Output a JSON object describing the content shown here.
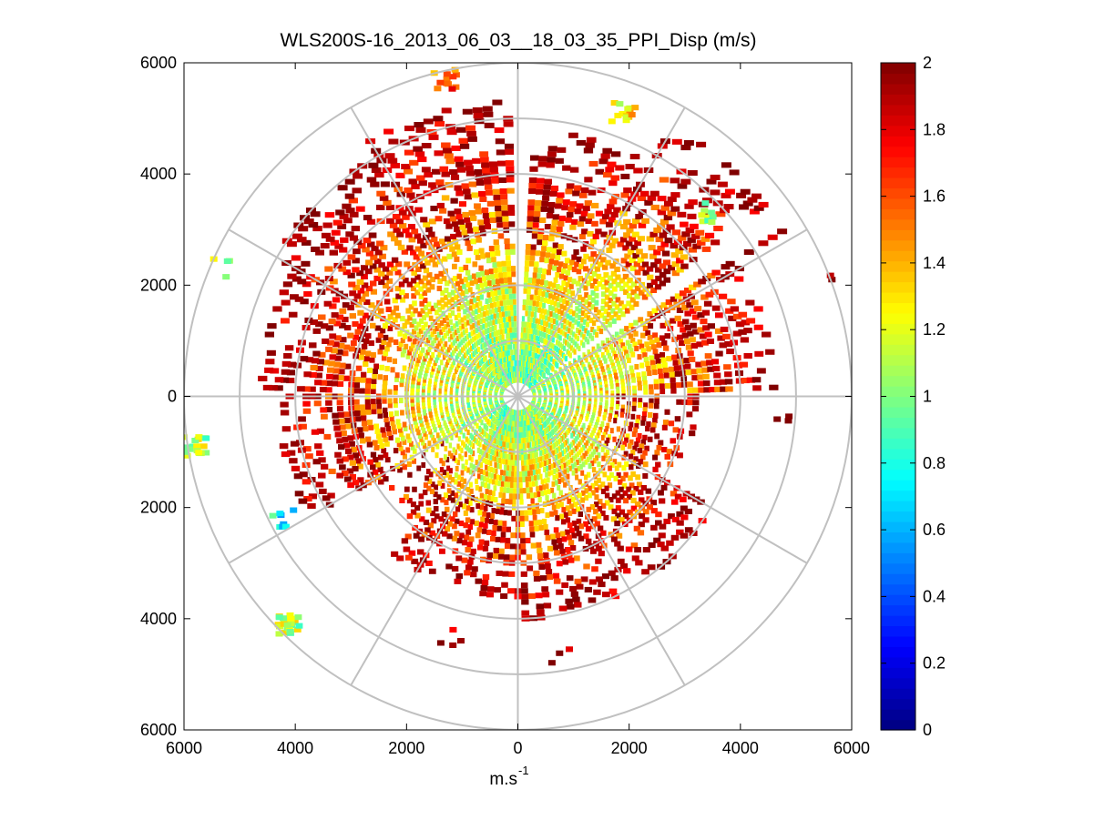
{
  "chart_data": {
    "type": "heatmap",
    "subtype": "polar-ppi",
    "title": "WLS200S-16_2013_06_03__18_03_35_PPI_Disp (m/s)",
    "xlabel": "m.s",
    "xlabel_superscript": "-1",
    "ylabel": "",
    "xlim": [
      -6000,
      6000
    ],
    "ylim": [
      -6000,
      6000
    ],
    "x_ticks": [
      {
        "value": -6000,
        "label": "6000"
      },
      {
        "value": -4000,
        "label": "4000"
      },
      {
        "value": -2000,
        "label": "2000"
      },
      {
        "value": 0,
        "label": "0"
      },
      {
        "value": 2000,
        "label": "2000"
      },
      {
        "value": 4000,
        "label": "4000"
      },
      {
        "value": 6000,
        "label": "6000"
      }
    ],
    "y_ticks": [
      {
        "value": 6000,
        "label": "6000"
      },
      {
        "value": 4000,
        "label": "4000"
      },
      {
        "value": 2000,
        "label": "2000"
      },
      {
        "value": 0,
        "label": "0"
      },
      {
        "value": -2000,
        "label": "2000"
      },
      {
        "value": -4000,
        "label": "4000"
      },
      {
        "value": -6000,
        "label": "6000"
      }
    ],
    "polar_rings": [
      1000,
      2000,
      3000,
      4000,
      5000,
      6000
    ],
    "polar_spokes_deg": [
      0,
      30,
      60,
      90,
      120,
      150,
      180,
      210,
      240,
      270,
      300,
      330
    ],
    "range_gate_m": 100,
    "azimuth_step_deg": 2,
    "max_range_m": 6000,
    "colorbar": {
      "colormap": "jet",
      "min": 0,
      "max": 2,
      "ticks": [
        {
          "value": 0,
          "label": "0"
        },
        {
          "value": 0.2,
          "label": "0.2"
        },
        {
          "value": 0.4,
          "label": "0.4"
        },
        {
          "value": 0.6,
          "label": "0.6"
        },
        {
          "value": 0.8,
          "label": "0.8"
        },
        {
          "value": 1,
          "label": "1"
        },
        {
          "value": 1.2,
          "label": "1.2"
        },
        {
          "value": 1.4,
          "label": "1.4"
        },
        {
          "value": 1.6,
          "label": "1.6"
        },
        {
          "value": 1.8,
          "label": "1.8"
        },
        {
          "value": 2,
          "label": "2"
        }
      ]
    },
    "sector_coverage": [
      {
        "az_from": 0,
        "az_to": 30,
        "max_range_m": 4800,
        "inner_value": 0.95,
        "outer_value": 1.95
      },
      {
        "az_from": 30,
        "az_to": 60,
        "max_range_m": 5600,
        "inner_value": 0.95,
        "outer_value": 1.95
      },
      {
        "az_from": 60,
        "az_to": 90,
        "max_range_m": 4600,
        "inner_value": 1.0,
        "outer_value": 1.9
      },
      {
        "az_from": 90,
        "az_to": 120,
        "max_range_m": 3200,
        "inner_value": 1.0,
        "outer_value": 1.8
      },
      {
        "az_from": 120,
        "az_to": 150,
        "max_range_m": 4000,
        "inner_value": 1.0,
        "outer_value": 1.9
      },
      {
        "az_from": 150,
        "az_to": 180,
        "max_range_m": 4000,
        "inner_value": 1.0,
        "outer_value": 1.95
      },
      {
        "az_from": 180,
        "az_to": 220,
        "max_range_m": 3600,
        "inner_value": 1.0,
        "outer_value": 1.9
      },
      {
        "az_from": 220,
        "az_to": 240,
        "max_range_m": 2900,
        "inner_value": 0.95,
        "outer_value": 1.7
      },
      {
        "az_from": 240,
        "az_to": 270,
        "max_range_m": 4300,
        "inner_value": 0.95,
        "outer_value": 1.95
      },
      {
        "az_from": 270,
        "az_to": 300,
        "max_range_m": 4600,
        "inner_value": 1.0,
        "outer_value": 1.95
      },
      {
        "az_from": 300,
        "az_to": 330,
        "max_range_m": 5000,
        "inner_value": 1.0,
        "outer_value": 1.95
      },
      {
        "az_from": 330,
        "az_to": 358,
        "max_range_m": 5300,
        "inner_value": 0.95,
        "outer_value": 1.95
      }
    ],
    "gap_azimuths_deg": [
      1,
      55,
      232,
      236
    ],
    "outlier_clusters": [
      {
        "x": -4100,
        "y": -4100,
        "value": 1.1,
        "count": 26
      },
      {
        "x": -5800,
        "y": -900,
        "value": 1.1,
        "count": 18
      },
      {
        "x": -5300,
        "y": 2300,
        "value": 1.05,
        "count": 4
      },
      {
        "x": -4200,
        "y": -2200,
        "value": 0.75,
        "count": 8
      },
      {
        "x": -1300,
        "y": 5700,
        "value": 1.6,
        "count": 12
      },
      {
        "x": 1900,
        "y": 5100,
        "value": 1.3,
        "count": 14
      },
      {
        "x": 3400,
        "y": 3300,
        "value": 1.1,
        "count": 10
      },
      {
        "x": 5500,
        "y": 2100,
        "value": 2.0,
        "count": 2
      },
      {
        "x": 4700,
        "y": -300,
        "value": 2.0,
        "count": 3
      },
      {
        "x": -1200,
        "y": -4300,
        "value": 2.0,
        "count": 4
      },
      {
        "x": 800,
        "y": -4700,
        "value": 2.0,
        "count": 3
      }
    ]
  }
}
